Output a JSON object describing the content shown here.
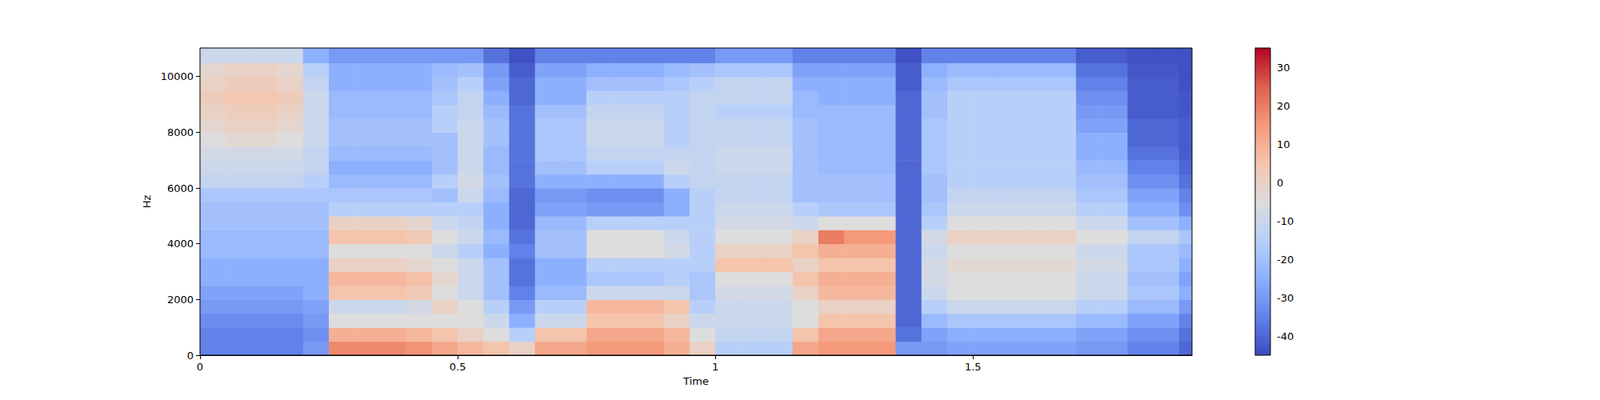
{
  "chart_data": {
    "type": "heatmap",
    "x_label": "Time",
    "y_label": "Hz",
    "xlim": [
      0,
      1.925
    ],
    "ylim": [
      0,
      11025
    ],
    "xticks": [
      0,
      0.5,
      1,
      1.5
    ],
    "yticks": [
      0,
      2000,
      4000,
      6000,
      8000,
      10000
    ],
    "grid": false,
    "x_bins": [
      0,
      0.05,
      0.1,
      0.15,
      0.2,
      0.25,
      0.3,
      0.35,
      0.4,
      0.45,
      0.5,
      0.55,
      0.6,
      0.65,
      0.7,
      0.75,
      0.8,
      0.85,
      0.9,
      0.95,
      1.0,
      1.05,
      1.1,
      1.15,
      1.2,
      1.25,
      1.3,
      1.35,
      1.4,
      1.45,
      1.5,
      1.55,
      1.6,
      1.65,
      1.7,
      1.75,
      1.8,
      1.85,
      1.9,
      1.925
    ],
    "y_bins": [
      0,
      500,
      1000,
      1500,
      2000,
      2500,
      3000,
      3500,
      4000,
      4500,
      5000,
      5500,
      6000,
      6500,
      7000,
      7500,
      8000,
      8500,
      9000,
      9500,
      10000,
      10500,
      11025
    ],
    "cells": [
      [
        -35,
        -35,
        -33,
        -30,
        -28,
        -25,
        -25,
        -22,
        -22,
        -20,
        -20,
        -18,
        -12,
        -10,
        -8,
        -5,
        -2,
        0,
        2,
        0,
        -2,
        -10
      ],
      [
        -35,
        -35,
        -33,
        -30,
        -28,
        -25,
        -25,
        -22,
        -22,
        -20,
        -20,
        -18,
        -12,
        -10,
        -8,
        -3,
        0,
        2,
        4,
        2,
        0,
        -10
      ],
      [
        -35,
        -35,
        -33,
        -30,
        -28,
        -25,
        -25,
        -22,
        -22,
        -20,
        -20,
        -18,
        -12,
        -10,
        -8,
        -3,
        0,
        2,
        4,
        2,
        0,
        -10
      ],
      [
        -35,
        -35,
        -33,
        -30,
        -28,
        -25,
        -25,
        -22,
        -22,
        -20,
        -20,
        -18,
        -12,
        -10,
        -8,
        -5,
        -2,
        0,
        2,
        0,
        -2,
        -10
      ],
      [
        -30,
        -32,
        -30,
        -28,
        -25,
        -25,
        -25,
        -22,
        -22,
        -20,
        -20,
        -18,
        -15,
        -12,
        -12,
        -10,
        -10,
        -10,
        -10,
        -12,
        -15,
        -25
      ],
      [
        18,
        10,
        -5,
        -10,
        5,
        8,
        0,
        -5,
        5,
        0,
        -15,
        -18,
        -22,
        -25,
        -22,
        -20,
        -20,
        -22,
        -22,
        -25,
        -25,
        -30
      ],
      [
        18,
        10,
        -5,
        -10,
        5,
        8,
        0,
        -5,
        5,
        0,
        -15,
        -18,
        -22,
        -25,
        -22,
        -20,
        -20,
        -22,
        -22,
        -25,
        -25,
        -30
      ],
      [
        18,
        10,
        -5,
        -10,
        5,
        8,
        0,
        -5,
        5,
        0,
        -15,
        -18,
        -22,
        -25,
        -22,
        -20,
        -20,
        -22,
        -22,
        -25,
        -25,
        -30
      ],
      [
        16,
        8,
        -5,
        -8,
        3,
        6,
        -2,
        -5,
        3,
        -2,
        -15,
        -18,
        -22,
        -25,
        -22,
        -20,
        -20,
        -22,
        -22,
        -25,
        -25,
        -30
      ],
      [
        12,
        5,
        -5,
        0,
        -5,
        -2,
        -5,
        -10,
        -5,
        -10,
        -15,
        -20,
        -15,
        -20,
        -20,
        -20,
        -15,
        -15,
        -18,
        -20,
        -22,
        -30
      ],
      [
        8,
        0,
        -5,
        -5,
        -10,
        -10,
        -10,
        -15,
        -10,
        -12,
        -15,
        -10,
        -8,
        -10,
        -10,
        -10,
        -10,
        -12,
        -12,
        -15,
        -20,
        -30
      ],
      [
        5,
        -5,
        -10,
        -15,
        -20,
        -20,
        -20,
        -25,
        -22,
        -25,
        -25,
        -22,
        -20,
        -22,
        -22,
        -20,
        -20,
        -22,
        -25,
        -28,
        -30,
        -38
      ],
      [
        0,
        -15,
        -25,
        -30,
        -35,
        -38,
        -38,
        -35,
        -38,
        -40,
        -40,
        -40,
        -38,
        -38,
        -38,
        -38,
        -38,
        -38,
        -40,
        -40,
        -42,
        -44
      ],
      [
        12,
        5,
        -10,
        -15,
        -22,
        -25,
        -25,
        -20,
        -20,
        -22,
        -28,
        -30,
        -25,
        -20,
        -18,
        -18,
        -18,
        -20,
        -25,
        -25,
        -28,
        -35
      ],
      [
        12,
        5,
        -10,
        -15,
        -22,
        -25,
        -25,
        -20,
        -20,
        -22,
        -28,
        -30,
        -25,
        -20,
        -18,
        -18,
        -18,
        -20,
        -25,
        -25,
        -28,
        -35
      ],
      [
        15,
        12,
        5,
        8,
        -10,
        -18,
        -15,
        -5,
        -5,
        -15,
        -30,
        -32,
        -25,
        -15,
        -12,
        -10,
        -10,
        -12,
        -15,
        -20,
        -25,
        -35
      ],
      [
        15,
        12,
        5,
        8,
        -10,
        -18,
        -15,
        -5,
        -5,
        -15,
        -30,
        -32,
        -25,
        -15,
        -12,
        -10,
        -10,
        -12,
        -15,
        -20,
        -25,
        -35
      ],
      [
        15,
        12,
        5,
        8,
        -10,
        -18,
        -15,
        -5,
        -5,
        -15,
        -30,
        -32,
        -25,
        -15,
        -12,
        -10,
        -10,
        -12,
        -15,
        -20,
        -25,
        -35
      ],
      [
        10,
        8,
        0,
        5,
        -10,
        -15,
        -15,
        -8,
        -10,
        -15,
        -25,
        -25,
        -15,
        -10,
        -12,
        -15,
        -15,
        -15,
        -15,
        -18,
        -22,
        -35
      ],
      [
        0,
        -5,
        -10,
        -15,
        -18,
        -18,
        -15,
        -15,
        -15,
        -15,
        -15,
        -15,
        -12,
        -12,
        -12,
        -12,
        -12,
        -12,
        -12,
        -15,
        -20,
        -35
      ],
      [
        -15,
        -12,
        -10,
        -10,
        -8,
        -5,
        5,
        0,
        -5,
        -8,
        -10,
        -12,
        -12,
        -10,
        -10,
        -12,
        -12,
        -15,
        -12,
        -12,
        -18,
        -30
      ],
      [
        -15,
        -12,
        -10,
        -10,
        -8,
        -5,
        5,
        0,
        -5,
        -8,
        -10,
        -12,
        -12,
        -10,
        -10,
        -12,
        -12,
        -15,
        -12,
        -12,
        -18,
        -30
      ],
      [
        -15,
        -12,
        -10,
        -10,
        -8,
        -5,
        5,
        0,
        -5,
        -8,
        -10,
        -12,
        -12,
        -10,
        -10,
        -12,
        -12,
        -15,
        -12,
        -12,
        -18,
        -30
      ],
      [
        12,
        5,
        -5,
        -5,
        0,
        5,
        0,
        5,
        0,
        -10,
        -15,
        -20,
        -20,
        -20,
        -20,
        -20,
        -20,
        -22,
        -22,
        -25,
        -28,
        -35
      ],
      [
        15,
        12,
        5,
        0,
        8,
        10,
        5,
        10,
        20,
        -5,
        -18,
        -20,
        -20,
        -22,
        -22,
        -22,
        -22,
        -22,
        -25,
        -25,
        -28,
        -35
      ],
      [
        15,
        12,
        5,
        0,
        8,
        10,
        5,
        10,
        15,
        -5,
        -18,
        -20,
        -20,
        -22,
        -22,
        -22,
        -22,
        -22,
        -25,
        -25,
        -28,
        -35
      ],
      [
        15,
        12,
        5,
        0,
        8,
        10,
        5,
        10,
        15,
        -5,
        -18,
        -20,
        -20,
        -22,
        -22,
        -22,
        -22,
        -22,
        -25,
        -25,
        -28,
        -35
      ],
      [
        -30,
        -38,
        -40,
        -40,
        -40,
        -40,
        -40,
        -40,
        -40,
        -40,
        -40,
        -40,
        -40,
        -40,
        -40,
        -40,
        -40,
        -40,
        -40,
        -42,
        -42,
        -44
      ],
      [
        -30,
        -28,
        -22,
        -15,
        -10,
        -8,
        -8,
        -10,
        -8,
        -15,
        -18,
        -20,
        -20,
        -18,
        -18,
        -18,
        -18,
        -20,
        -20,
        -22,
        -25,
        -35
      ],
      [
        -28,
        -25,
        -18,
        -10,
        -5,
        -5,
        -3,
        -5,
        0,
        -5,
        -10,
        -12,
        -15,
        -15,
        -15,
        -15,
        -15,
        -15,
        -15,
        -18,
        -22,
        -35
      ],
      [
        -28,
        -25,
        -18,
        -10,
        -5,
        -5,
        -3,
        -5,
        0,
        -5,
        -10,
        -12,
        -15,
        -15,
        -15,
        -15,
        -15,
        -15,
        -15,
        -18,
        -22,
        -35
      ],
      [
        -28,
        -25,
        -18,
        -10,
        -5,
        -5,
        -3,
        -5,
        0,
        -5,
        -10,
        -12,
        -15,
        -15,
        -15,
        -15,
        -15,
        -15,
        -15,
        -18,
        -22,
        -35
      ],
      [
        -28,
        -25,
        -18,
        -10,
        -5,
        -5,
        -3,
        -5,
        0,
        -5,
        -10,
        -12,
        -15,
        -15,
        -15,
        -15,
        -15,
        -15,
        -15,
        -18,
        -22,
        -35
      ],
      [
        -28,
        -25,
        -18,
        -10,
        -5,
        -5,
        -3,
        -5,
        0,
        -5,
        -10,
        -12,
        -15,
        -15,
        -15,
        -15,
        -15,
        -15,
        -15,
        -18,
        -22,
        -35
      ],
      [
        -30,
        -28,
        -22,
        -15,
        -10,
        -10,
        -8,
        -10,
        -5,
        -10,
        -15,
        -18,
        -20,
        -22,
        -25,
        -25,
        -28,
        -30,
        -32,
        -35,
        -38,
        -42
      ],
      [
        -30,
        -28,
        -22,
        -15,
        -10,
        -10,
        -8,
        -10,
        -5,
        -10,
        -15,
        -18,
        -20,
        -22,
        -25,
        -25,
        -28,
        -30,
        -32,
        -35,
        -38,
        -42
      ],
      [
        -35,
        -32,
        -28,
        -22,
        -18,
        -20,
        -18,
        -18,
        -12,
        -20,
        -25,
        -28,
        -32,
        -35,
        -38,
        -40,
        -40,
        -42,
        -42,
        -42,
        -43,
        -44
      ],
      [
        -35,
        -32,
        -28,
        -22,
        -18,
        -20,
        -18,
        -18,
        -12,
        -20,
        -25,
        -28,
        -32,
        -35,
        -38,
        -40,
        -40,
        -42,
        -42,
        -42,
        -43,
        -44
      ],
      [
        -40,
        -38,
        -35,
        -30,
        -25,
        -28,
        -25,
        -22,
        -18,
        -25,
        -32,
        -35,
        -38,
        -40,
        -42,
        -42,
        -42,
        -43,
        -43,
        -44,
        -44,
        -44
      ]
    ],
    "colorbar": {
      "range": [
        -45,
        35
      ],
      "ticks": [
        -40,
        -30,
        -20,
        -10,
        0,
        10,
        20,
        30
      ]
    }
  }
}
